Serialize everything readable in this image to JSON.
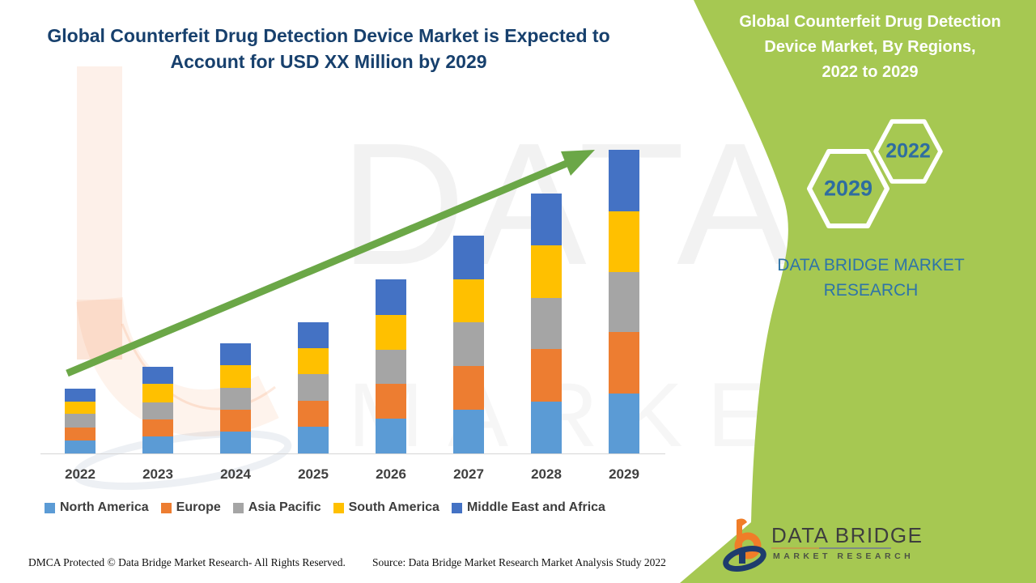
{
  "page": {
    "title_lines": [
      "Global Counterfeit Drug Detection Device Market is Expected to",
      "Account for USD XX Million by 2029"
    ]
  },
  "chart_data": {
    "type": "bar",
    "stacked": true,
    "title": "Global Counterfeit Drug Detection Device Market is Expected to Account for USD XX Million by 2029",
    "xlabel": "",
    "ylabel": "",
    "y_axis_visible": false,
    "value_units": "relative estimated units (axis unlabeled, market shown as USD XX Million)",
    "legend_position": "bottom",
    "grid": false,
    "trend_arrow": true,
    "categories": [
      "2022",
      "2023",
      "2024",
      "2025",
      "2026",
      "2027",
      "2028",
      "2029"
    ],
    "series": [
      {
        "name": "North America",
        "color": "#5b9bd5",
        "values": [
          16,
          21,
          27,
          33,
          43,
          54,
          64,
          74
        ]
      },
      {
        "name": "Europe",
        "color": "#ed7d31",
        "values": [
          16,
          21,
          27,
          32,
          43,
          54,
          65,
          76
        ]
      },
      {
        "name": "Asia Pacific",
        "color": "#a5a5a5",
        "values": [
          17,
          21,
          27,
          33,
          42,
          54,
          63,
          74
        ]
      },
      {
        "name": "South America",
        "color": "#ffc000",
        "values": [
          15,
          23,
          28,
          32,
          43,
          53,
          65,
          75
        ]
      },
      {
        "name": "Middle East and Africa",
        "color": "#4472c4",
        "values": [
          16,
          21,
          27,
          32,
          44,
          54,
          64,
          76
        ]
      }
    ]
  },
  "side_panel": {
    "background_color": "#a6c852",
    "title_lines": [
      "Global Counterfeit Drug Detection",
      "Device Market, By Regions,",
      "2022 to 2029"
    ],
    "hexagons": [
      {
        "label": "2029"
      },
      {
        "label": "2022"
      }
    ],
    "brand_lines": [
      "DATA BRIDGE MARKET",
      "RESEARCH"
    ]
  },
  "watermark": {
    "line1": "DATA BRIDGE",
    "line2": "MARKET RESEARCH"
  },
  "logo": {
    "name": "DATA BRIDGE",
    "sub": "MARKET RESEARCH"
  },
  "footer": {
    "dmca": "DMCA Protected © Data Bridge Market Research- All Rights Reserved.",
    "source": "Source: Data Bridge Market Research Market Analysis Study 2022"
  },
  "colors": {
    "title_navy": "#17406d",
    "arrow_green": "#6ba747",
    "hex_number_blue": "#2e6da0",
    "side_brand_blue": "#2e74a8"
  }
}
